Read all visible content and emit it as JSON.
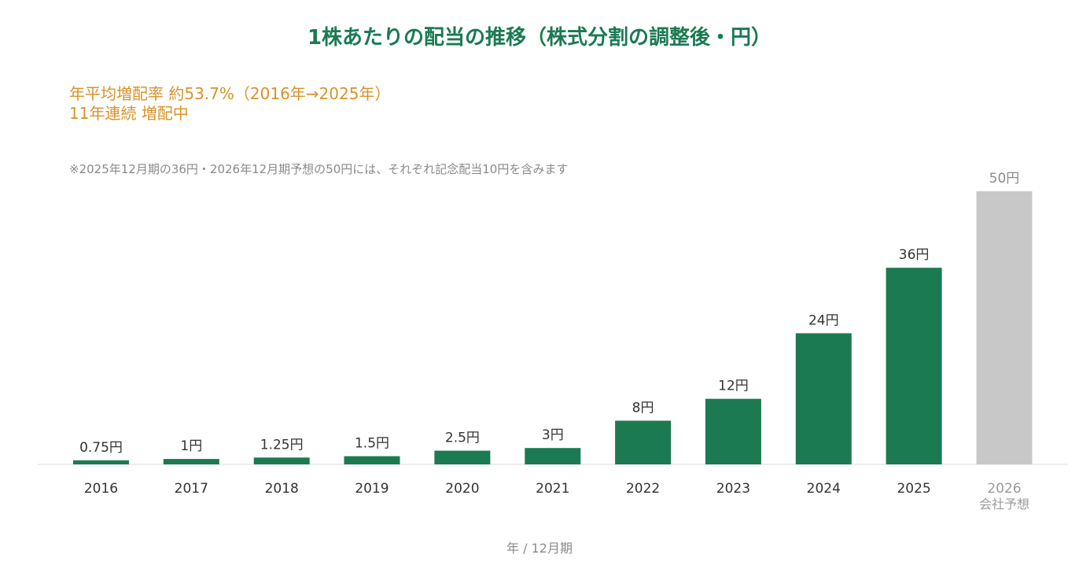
{
  "chart_data": {
    "type": "bar",
    "title": "1株あたりの配当の推移（株式分割の調整後・円）",
    "annotations": [
      "年平均増配率 約53.7%（2016年→2025年）",
      "11年連続 増配中"
    ],
    "footnote": "※2025年12月期の36円・2026年12月期予想の50円には、それぞれ記念配当10円を含みます",
    "categories": [
      "2016",
      "2017",
      "2018",
      "2019",
      "2020",
      "2021",
      "2022",
      "2023",
      "2024",
      "2025",
      "2026"
    ],
    "forecast_sublabel": "会社予想",
    "values": [
      0.75,
      1,
      1.25,
      1.5,
      2.5,
      3,
      8,
      12,
      24,
      36,
      50
    ],
    "value_labels": [
      "0.75円",
      "1円",
      "1.25円",
      "1.5円",
      "2.5円",
      "3円",
      "8円",
      "12円",
      "24円",
      "36円",
      "50円"
    ],
    "forecast_index": 10,
    "xlabel": "年 / 12月期",
    "ylabel": "",
    "ylim": [
      0,
      50
    ],
    "grid": false,
    "colors": {
      "bar": "#1b7a52",
      "forecast_bar": "#c8c8c8",
      "title": "#1b7a52",
      "annotation": "#d9922a",
      "axis_line": "#dddddd"
    }
  }
}
